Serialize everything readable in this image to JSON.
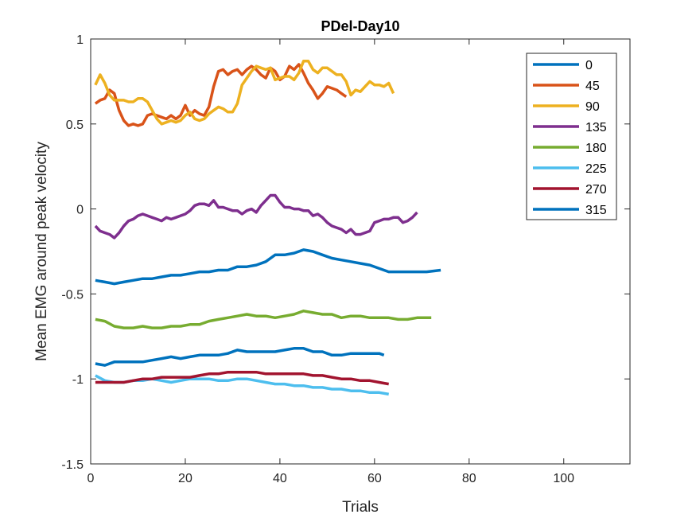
{
  "chart_data": {
    "type": "line",
    "title": "PDel-Day10",
    "xlabel": "Trials",
    "ylabel": "Mean EMG around peak velocity",
    "xlim": [
      0,
      114
    ],
    "ylim": [
      -1.5,
      1
    ],
    "xticks": [
      0,
      20,
      40,
      60,
      80,
      100
    ],
    "yticks": [
      -1.5,
      -1,
      -0.5,
      0,
      0.5,
      1
    ],
    "xtick_labels": [
      "0",
      "20",
      "40",
      "60",
      "80",
      "100"
    ],
    "ytick_labels": [
      "-1.5",
      "-1",
      "-0.5",
      "0",
      "0.5",
      "1"
    ],
    "grid": false,
    "legend_position": "top-right",
    "series": [
      {
        "name": "0",
        "color": "#0072BD",
        "x": [
          1,
          3,
          5,
          7,
          9,
          11,
          13,
          15,
          17,
          19,
          21,
          23,
          25,
          27,
          29,
          31,
          33,
          35,
          37,
          39,
          41,
          43,
          45,
          47,
          49,
          51,
          53,
          55,
          57,
          59,
          61,
          62
        ],
        "y": [
          -0.91,
          -0.92,
          -0.9,
          -0.9,
          -0.9,
          -0.9,
          -0.89,
          -0.88,
          -0.87,
          -0.88,
          -0.87,
          -0.86,
          -0.86,
          -0.86,
          -0.85,
          -0.83,
          -0.84,
          -0.84,
          -0.84,
          -0.84,
          -0.83,
          -0.82,
          -0.82,
          -0.84,
          -0.84,
          -0.86,
          -0.86,
          -0.85,
          -0.85,
          -0.85,
          -0.85,
          -0.86
        ]
      },
      {
        "name": "45",
        "color": "#D95319",
        "x": [
          1,
          2,
          3,
          4,
          5,
          6,
          7,
          8,
          9,
          10,
          11,
          12,
          13,
          14,
          15,
          16,
          17,
          18,
          19,
          20,
          21,
          22,
          23,
          24,
          25,
          26,
          27,
          28,
          29,
          30,
          31,
          32,
          33,
          34,
          35,
          36,
          37,
          38,
          39,
          40,
          41,
          42,
          43,
          44,
          45,
          46,
          47,
          48,
          49,
          50,
          51,
          52,
          53,
          54
        ],
        "y": [
          0.62,
          0.64,
          0.65,
          0.7,
          0.68,
          0.58,
          0.52,
          0.49,
          0.5,
          0.49,
          0.5,
          0.55,
          0.56,
          0.55,
          0.54,
          0.53,
          0.55,
          0.53,
          0.55,
          0.61,
          0.55,
          0.58,
          0.56,
          0.55,
          0.6,
          0.72,
          0.81,
          0.82,
          0.79,
          0.81,
          0.82,
          0.79,
          0.82,
          0.84,
          0.82,
          0.79,
          0.77,
          0.83,
          0.81,
          0.76,
          0.78,
          0.84,
          0.82,
          0.85,
          0.8,
          0.74,
          0.7,
          0.65,
          0.68,
          0.72,
          0.71,
          0.7,
          0.68,
          0.66
        ]
      },
      {
        "name": "90",
        "color": "#EDB120",
        "x": [
          1,
          2,
          3,
          4,
          5,
          6,
          7,
          8,
          9,
          10,
          11,
          12,
          13,
          14,
          15,
          16,
          17,
          18,
          19,
          20,
          21,
          22,
          23,
          24,
          25,
          26,
          27,
          28,
          29,
          30,
          31,
          32,
          33,
          34,
          35,
          36,
          37,
          38,
          39,
          40,
          41,
          42,
          43,
          44,
          45,
          46,
          47,
          48,
          49,
          50,
          51,
          52,
          53,
          54,
          55,
          56,
          57,
          58,
          59,
          60,
          61,
          62,
          63,
          64
        ],
        "y": [
          0.73,
          0.79,
          0.74,
          0.67,
          0.64,
          0.64,
          0.64,
          0.63,
          0.63,
          0.65,
          0.65,
          0.63,
          0.58,
          0.53,
          0.5,
          0.51,
          0.52,
          0.51,
          0.52,
          0.55,
          0.57,
          0.53,
          0.52,
          0.53,
          0.56,
          0.58,
          0.6,
          0.59,
          0.57,
          0.57,
          0.62,
          0.73,
          0.77,
          0.81,
          0.84,
          0.83,
          0.82,
          0.83,
          0.76,
          0.77,
          0.78,
          0.78,
          0.76,
          0.8,
          0.87,
          0.87,
          0.82,
          0.8,
          0.83,
          0.83,
          0.81,
          0.79,
          0.79,
          0.75,
          0.67,
          0.7,
          0.69,
          0.72,
          0.75,
          0.73,
          0.73,
          0.72,
          0.74,
          0.68
        ]
      },
      {
        "name": "135",
        "color": "#7E2F8E",
        "x": [
          1,
          2,
          3,
          4,
          5,
          6,
          7,
          8,
          9,
          10,
          11,
          12,
          13,
          14,
          15,
          16,
          17,
          18,
          19,
          20,
          21,
          22,
          23,
          24,
          25,
          26,
          27,
          28,
          29,
          30,
          31,
          32,
          33,
          34,
          35,
          36,
          37,
          38,
          39,
          40,
          41,
          42,
          43,
          44,
          45,
          46,
          47,
          48,
          49,
          50,
          51,
          52,
          53,
          54,
          55,
          56,
          57,
          58,
          59,
          60,
          61,
          62,
          63,
          64,
          65,
          66,
          67,
          68,
          69
        ],
        "y": [
          -0.1,
          -0.13,
          -0.14,
          -0.15,
          -0.17,
          -0.14,
          -0.1,
          -0.07,
          -0.06,
          -0.04,
          -0.03,
          -0.04,
          -0.05,
          -0.06,
          -0.07,
          -0.05,
          -0.06,
          -0.05,
          -0.04,
          -0.03,
          -0.01,
          0.02,
          0.03,
          0.03,
          0.02,
          0.05,
          0.01,
          0.01,
          0.0,
          -0.01,
          -0.01,
          -0.03,
          -0.01,
          0.0,
          -0.02,
          0.02,
          0.05,
          0.08,
          0.08,
          0.04,
          0.01,
          0.01,
          0.0,
          0.0,
          -0.01,
          -0.01,
          -0.04,
          -0.03,
          -0.05,
          -0.08,
          -0.1,
          -0.11,
          -0.12,
          -0.14,
          -0.12,
          -0.15,
          -0.15,
          -0.14,
          -0.13,
          -0.08,
          -0.07,
          -0.06,
          -0.06,
          -0.05,
          -0.05,
          -0.08,
          -0.07,
          -0.05,
          -0.02
        ]
      },
      {
        "name": "180",
        "color": "#77AC30",
        "x": [
          1,
          3,
          5,
          7,
          9,
          11,
          13,
          15,
          17,
          19,
          21,
          23,
          25,
          27,
          29,
          31,
          33,
          35,
          37,
          39,
          41,
          43,
          45,
          47,
          49,
          51,
          53,
          55,
          57,
          59,
          61,
          63,
          65,
          67,
          69,
          71,
          72
        ],
        "y": [
          -0.65,
          -0.66,
          -0.69,
          -0.7,
          -0.7,
          -0.69,
          -0.7,
          -0.7,
          -0.69,
          -0.69,
          -0.68,
          -0.68,
          -0.66,
          -0.65,
          -0.64,
          -0.63,
          -0.62,
          -0.63,
          -0.63,
          -0.64,
          -0.63,
          -0.62,
          -0.6,
          -0.61,
          -0.62,
          -0.62,
          -0.64,
          -0.63,
          -0.63,
          -0.64,
          -0.64,
          -0.64,
          -0.65,
          -0.65,
          -0.64,
          -0.64,
          -0.64
        ]
      },
      {
        "name": "225",
        "color": "#4DBEEE",
        "x": [
          1,
          3,
          5,
          7,
          9,
          11,
          13,
          15,
          17,
          19,
          21,
          23,
          25,
          27,
          29,
          31,
          33,
          35,
          37,
          39,
          41,
          43,
          45,
          47,
          49,
          51,
          53,
          55,
          57,
          59,
          61,
          63
        ],
        "y": [
          -0.98,
          -1.01,
          -1.02,
          -1.02,
          -1.01,
          -1.01,
          -1.0,
          -1.01,
          -1.02,
          -1.01,
          -1.0,
          -1.0,
          -1.0,
          -1.01,
          -1.01,
          -1.0,
          -1.0,
          -1.01,
          -1.02,
          -1.03,
          -1.03,
          -1.04,
          -1.04,
          -1.05,
          -1.05,
          -1.06,
          -1.06,
          -1.07,
          -1.07,
          -1.08,
          -1.08,
          -1.09
        ]
      },
      {
        "name": "270",
        "color": "#A2142F",
        "x": [
          1,
          3,
          5,
          7,
          9,
          11,
          13,
          15,
          17,
          19,
          21,
          23,
          25,
          27,
          29,
          31,
          33,
          35,
          37,
          39,
          41,
          43,
          45,
          47,
          49,
          51,
          53,
          55,
          57,
          59,
          61,
          63
        ],
        "y": [
          -1.02,
          -1.02,
          -1.02,
          -1.02,
          -1.01,
          -1.0,
          -1.0,
          -0.99,
          -0.99,
          -0.99,
          -0.99,
          -0.98,
          -0.97,
          -0.97,
          -0.96,
          -0.96,
          -0.96,
          -0.96,
          -0.97,
          -0.97,
          -0.97,
          -0.97,
          -0.97,
          -0.98,
          -0.98,
          -0.99,
          -1.0,
          -1.0,
          -1.01,
          -1.01,
          -1.02,
          -1.03
        ]
      },
      {
        "name": "315",
        "color": "#0072BD",
        "x": [
          1,
          3,
          5,
          7,
          9,
          11,
          13,
          15,
          17,
          19,
          21,
          23,
          25,
          27,
          29,
          31,
          33,
          35,
          37,
          39,
          41,
          43,
          45,
          47,
          49,
          51,
          53,
          55,
          57,
          59,
          61,
          63,
          65,
          67,
          69,
          71,
          74
        ],
        "y": [
          -0.42,
          -0.43,
          -0.44,
          -0.43,
          -0.42,
          -0.41,
          -0.41,
          -0.4,
          -0.39,
          -0.39,
          -0.38,
          -0.37,
          -0.37,
          -0.36,
          -0.36,
          -0.34,
          -0.34,
          -0.33,
          -0.31,
          -0.27,
          -0.27,
          -0.26,
          -0.24,
          -0.25,
          -0.27,
          -0.29,
          -0.3,
          -0.31,
          -0.32,
          -0.33,
          -0.35,
          -0.37,
          -0.37,
          -0.37,
          -0.37,
          -0.37,
          -0.36
        ]
      }
    ]
  }
}
